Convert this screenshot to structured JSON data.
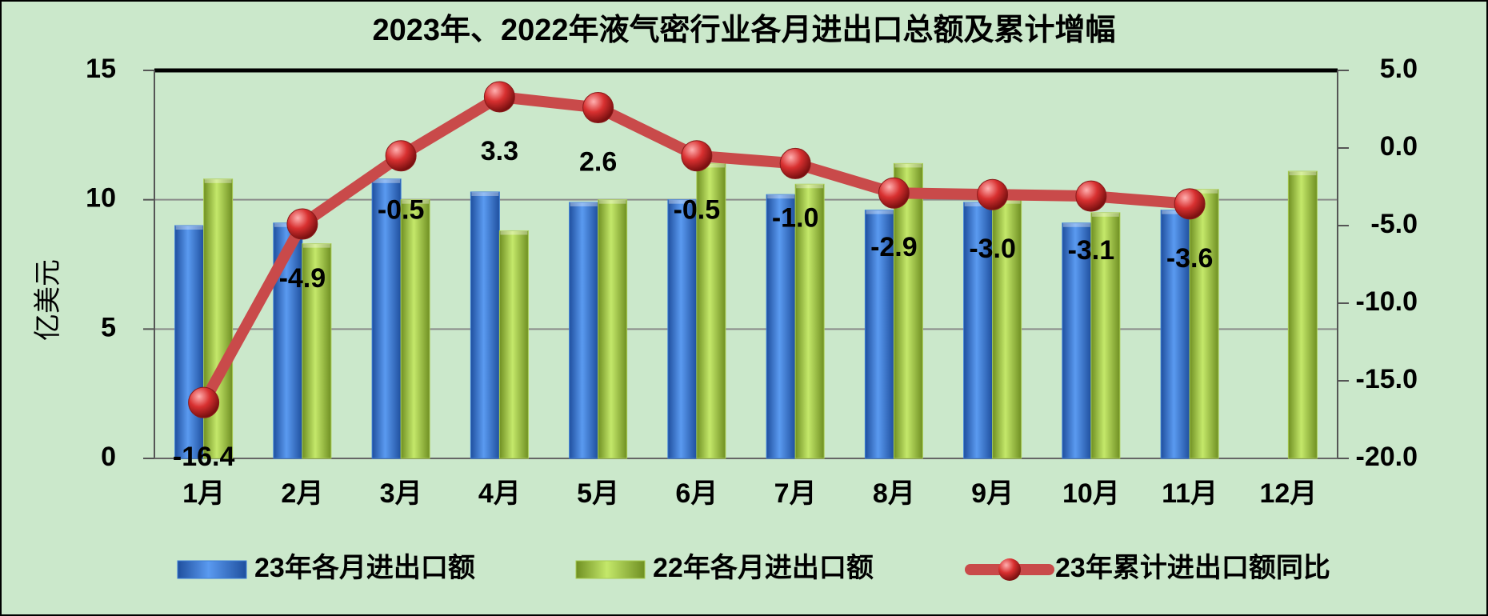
{
  "chart_data": {
    "type": "bar_line",
    "title": "2023年、2022年液气密行业各月进出口总额及累计增幅",
    "y_label": "亿美元",
    "categories": [
      "1月",
      "2月",
      "3月",
      "4月",
      "5月",
      "6月",
      "7月",
      "8月",
      "9月",
      "10月",
      "11月",
      "12月"
    ],
    "series": [
      {
        "name": "23年各月进出口额",
        "type": "bar",
        "color": "#3b7dd8",
        "values": [
          9.0,
          9.1,
          10.8,
          10.3,
          9.9,
          10.0,
          10.2,
          9.6,
          9.9,
          9.1,
          9.6,
          null
        ]
      },
      {
        "name": "22年各月进出口额",
        "type": "bar",
        "color": "#a8cc52",
        "values": [
          10.8,
          8.3,
          10.0,
          8.8,
          10.0,
          11.4,
          10.6,
          11.4,
          10.0,
          9.5,
          10.4,
          11.1
        ]
      },
      {
        "name": "23年累计进出口额同比",
        "type": "line",
        "axis": "y2",
        "color": "#c94a4a",
        "values": [
          -16.4,
          -4.9,
          -0.5,
          3.3,
          2.6,
          -0.5,
          -1.0,
          -2.9,
          -3.0,
          -3.1,
          -3.6,
          null
        ],
        "value_labels": [
          "-16.4",
          "-4.9",
          "-0.5",
          "3.3",
          "2.6",
          "-0.5",
          "-1.0",
          "-2.9",
          "-3.0",
          "-3.1",
          "-3.6",
          null
        ]
      }
    ],
    "ylim": [
      0,
      15
    ],
    "yticks": [
      0,
      5,
      10,
      15
    ],
    "y2lim": [
      -20,
      5
    ],
    "y2ticks": [
      {
        "value": -20,
        "label": "-20.0"
      },
      {
        "value": -15,
        "label": "-15.0"
      },
      {
        "value": -10,
        "label": "-10.0"
      },
      {
        "value": -5,
        "label": "-5.0"
      },
      {
        "value": 0,
        "label": "0.0"
      },
      {
        "value": 5,
        "label": "5.0"
      }
    ],
    "grid": true,
    "legend": "bottom"
  }
}
